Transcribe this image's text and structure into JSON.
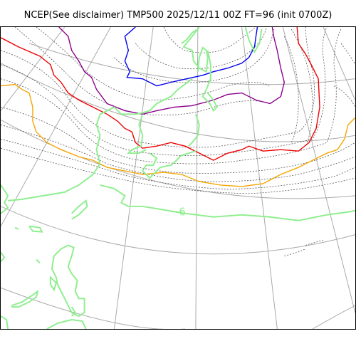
{
  "title": "NCEP(See disclaimer) TMP500 2025/12/11 00Z FT=96 (init 0700Z)",
  "labels": [
    {
      "text": "-6",
      "color": "#90ee90"
    }
  ],
  "legend_colors": {
    "graticule": "#aaaaaa",
    "coastline": "#90ee90",
    "isotherm_dotted": "#555555",
    "blue": "#0000ee",
    "purple": "#8b008b",
    "red": "#ee0000",
    "orange": "#f5a500"
  }
}
